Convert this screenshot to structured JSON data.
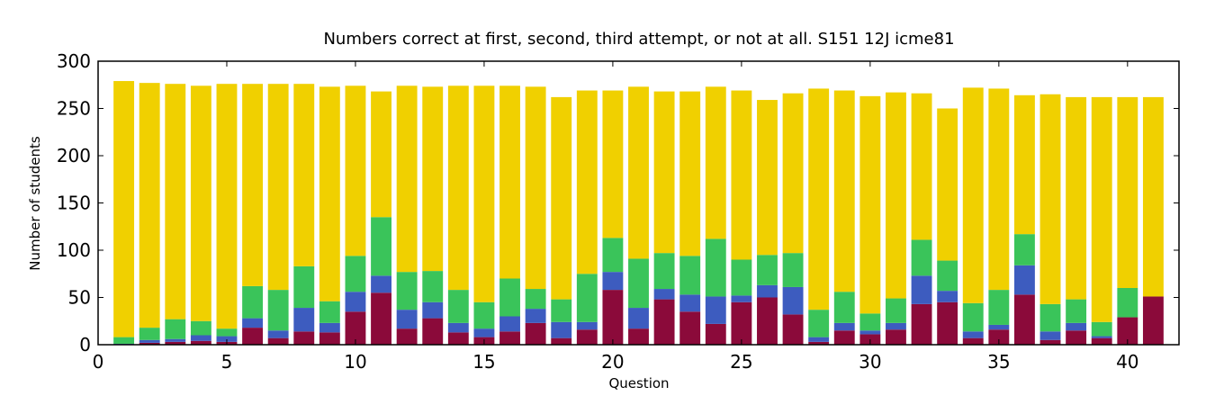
{
  "chart_data": {
    "type": "bar",
    "stacked": true,
    "title": "Numbers correct at first, second, third attempt, or not at all. S151 12J icme81",
    "xlabel": "Question",
    "ylabel": "Number of students",
    "xlim": [
      0,
      42
    ],
    "ylim": [
      0,
      300
    ],
    "xticks": [
      0,
      5,
      10,
      15,
      20,
      25,
      30,
      35,
      40
    ],
    "yticks": [
      0,
      50,
      100,
      150,
      200,
      250,
      300
    ],
    "grid": false,
    "x": [
      1,
      2,
      3,
      4,
      5,
      6,
      7,
      8,
      9,
      10,
      11,
      12,
      13,
      14,
      15,
      16,
      17,
      18,
      19,
      20,
      21,
      22,
      23,
      24,
      25,
      26,
      27,
      28,
      29,
      30,
      31,
      32,
      33,
      34,
      35,
      36,
      37,
      38,
      39,
      40,
      41
    ],
    "series": [
      {
        "color": "#8b0a3a",
        "values": [
          0,
          2,
          3,
          4,
          3,
          18,
          7,
          14,
          13,
          35,
          55,
          17,
          28,
          13,
          8,
          14,
          23,
          7,
          16,
          58,
          17,
          48,
          35,
          22,
          45,
          50,
          32,
          3,
          15,
          11,
          16,
          43,
          45,
          7,
          16,
          53,
          5,
          15,
          7,
          29,
          51
        ]
      },
      {
        "color": "#3d5cbf",
        "values": [
          1,
          3,
          3,
          6,
          6,
          10,
          8,
          25,
          10,
          21,
          18,
          20,
          17,
          10,
          9,
          16,
          15,
          17,
          8,
          19,
          22,
          11,
          18,
          29,
          7,
          13,
          29,
          5,
          8,
          4,
          7,
          30,
          12,
          7,
          5,
          31,
          9,
          8,
          2,
          0,
          0
        ]
      },
      {
        "color": "#3ac45a",
        "values": [
          7,
          13,
          21,
          15,
          8,
          34,
          43,
          44,
          23,
          38,
          62,
          40,
          33,
          35,
          28,
          40,
          21,
          24,
          51,
          36,
          52,
          38,
          41,
          61,
          38,
          32,
          36,
          29,
          33,
          18,
          26,
          38,
          32,
          30,
          37,
          33,
          29,
          25,
          15,
          31,
          0
        ]
      },
      {
        "color": "#f0d000",
        "values": [
          271,
          259,
          249,
          249,
          259,
          214,
          218,
          193,
          227,
          180,
          133,
          197,
          195,
          216,
          229,
          204,
          214,
          214,
          194,
          156,
          182,
          171,
          174,
          161,
          179,
          164,
          169,
          234,
          213,
          230,
          218,
          155,
          161,
          228,
          213,
          147,
          222,
          214,
          238,
          202,
          211
        ]
      }
    ]
  }
}
